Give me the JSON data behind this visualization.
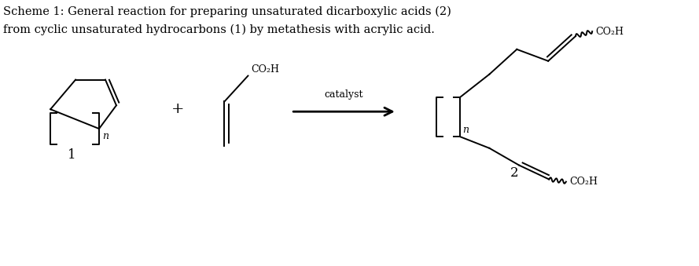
{
  "title_line1": "Scheme 1: General reaction for preparing unsaturated dicarboxylic acids (2)",
  "title_line2": "from cyclic unsaturated hydrocarbons (1) by metathesis with acrylic acid.",
  "background_color": "#ffffff",
  "text_color": "#000000",
  "label1": "1",
  "label2": "2",
  "catalyst_label": "catalyst",
  "plus_sign": "+",
  "co2h": "CO₂H",
  "figsize": [
    8.89,
    3.39
  ],
  "dpi": 100
}
